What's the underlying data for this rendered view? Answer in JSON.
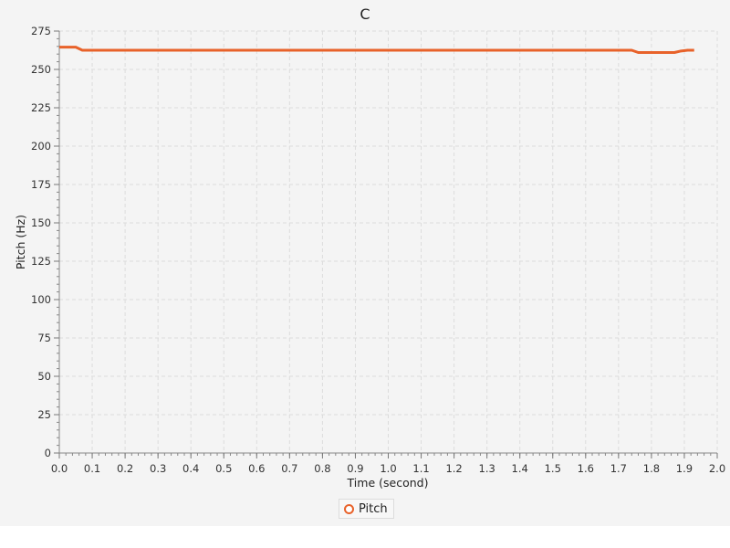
{
  "chart_data": {
    "type": "line",
    "title": "C",
    "xlabel": "Time (second)",
    "ylabel": "Pitch (Hz)",
    "xlim": [
      0,
      2.0
    ],
    "ylim": [
      0,
      275
    ],
    "x_ticks": [
      "0.0",
      "0.1",
      "0.2",
      "0.3",
      "0.4",
      "0.5",
      "0.6",
      "0.7",
      "0.8",
      "0.9",
      "1.0",
      "1.1",
      "1.2",
      "1.3",
      "1.4",
      "1.5",
      "1.6",
      "1.7",
      "1.8",
      "1.9",
      "2.0"
    ],
    "y_ticks": [
      "0",
      "25",
      "50",
      "75",
      "100",
      "125",
      "150",
      "175",
      "200",
      "225",
      "250",
      "275"
    ],
    "grid": true,
    "legend_position": "bottom",
    "series": [
      {
        "name": "Pitch",
        "color": "#e8622a",
        "x": [
          0.0,
          0.05,
          0.07,
          0.1,
          0.5,
          1.0,
          1.5,
          1.74,
          1.76,
          1.78,
          1.87,
          1.89,
          1.91,
          1.93
        ],
        "y": [
          264.5,
          264.5,
          262.5,
          262.5,
          262.5,
          262.5,
          262.5,
          262.5,
          261.0,
          261.0,
          261.0,
          262.0,
          262.5,
          262.5
        ]
      }
    ]
  }
}
